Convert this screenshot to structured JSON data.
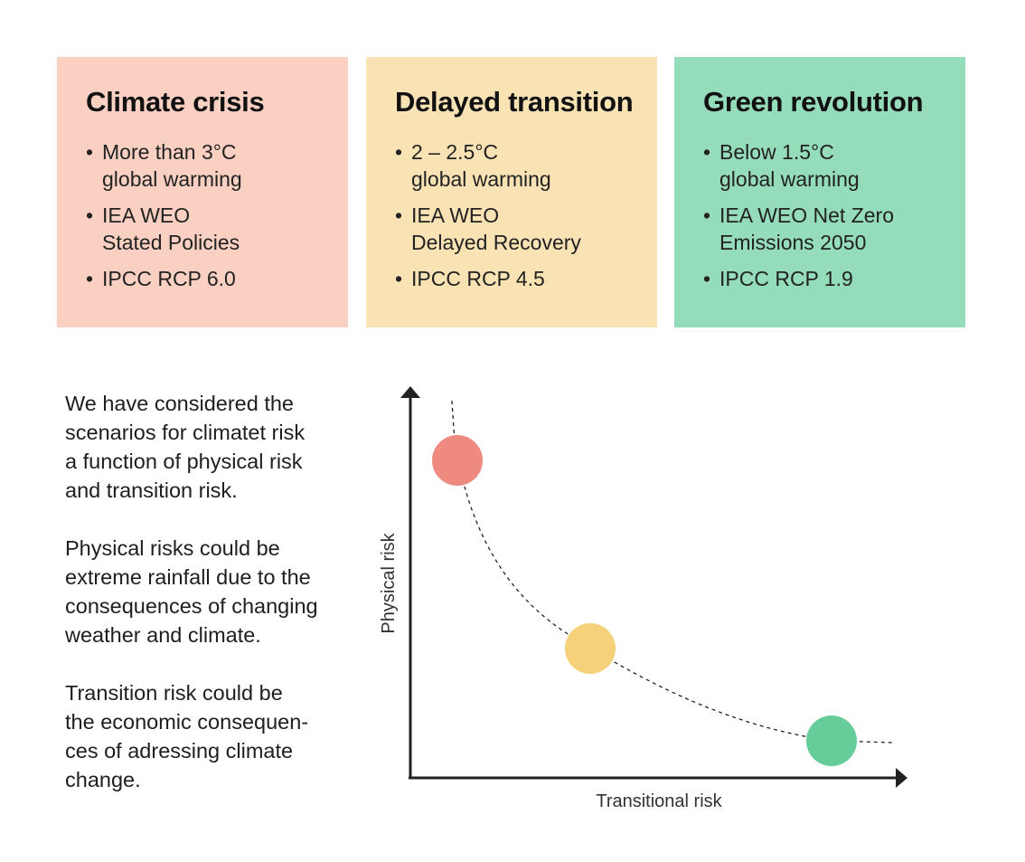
{
  "cards": [
    {
      "title": "Climate crisis",
      "color": "#f9d0c2",
      "items": [
        [
          "More than 3°C",
          "global warming"
        ],
        [
          "IEA WEO",
          "Stated Policies"
        ],
        [
          "IPCC RCP 6.0"
        ]
      ]
    },
    {
      "title": "Delayed transition",
      "color": "#f9e3b5",
      "items": [
        [
          "2 – 2.5°C",
          "global warming"
        ],
        [
          "IEA WEO",
          "Delayed Recovery"
        ],
        [
          "IPCC RCP 4.5"
        ]
      ]
    },
    {
      "title": "Green revolution",
      "color": "#95dcbb",
      "items": [
        [
          "Below 1.5°C",
          "global warming"
        ],
        [
          "IEA WEO Net Zero",
          "Emissions 2050"
        ],
        [
          "IPCC RCP 1.9"
        ]
      ]
    }
  ],
  "bullet": "•",
  "paragraphs": [
    [
      "We have considered the",
      "scenarios for climatet risk",
      "a function of physical risk",
      "and transition risk."
    ],
    [
      "Physical risks could be",
      "extreme rainfall due to the",
      "consequences of changing",
      "weather and climate."
    ],
    [
      "Transition risk could be",
      "the economic consequen-",
      "ces of adressing climate",
      "change."
    ]
  ],
  "diagram": {
    "x_axis_label": "Transitional risk",
    "y_axis_label": "Physical risk",
    "points": [
      {
        "color": "#ee8a80"
      },
      {
        "color": "#f5d27a"
      },
      {
        "color": "#66cc99"
      }
    ]
  }
}
